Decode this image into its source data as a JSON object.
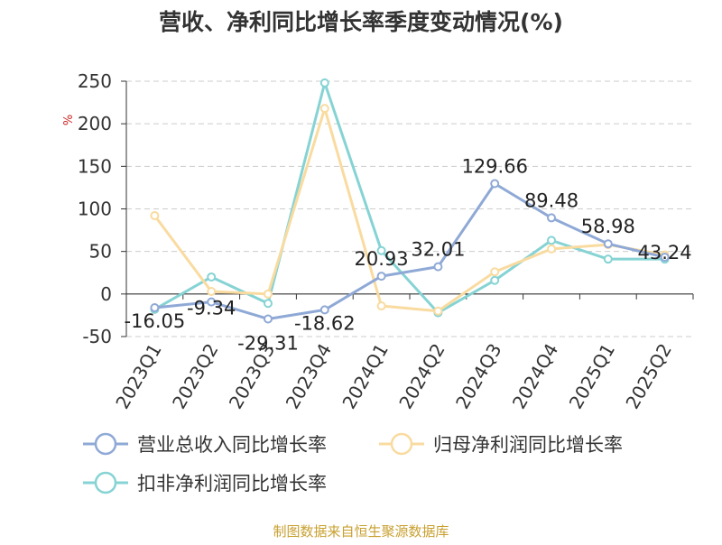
{
  "chart_data": {
    "type": "line",
    "title": "营收、净利同比增长率季度变动情况(%)",
    "ylabel": "%",
    "categories": [
      "2023Q1",
      "2023Q2",
      "2023Q3",
      "2023Q4",
      "2024Q1",
      "2024Q2",
      "2024Q3",
      "2024Q4",
      "2025Q1",
      "2025Q2"
    ],
    "ylim": [
      -50,
      250
    ],
    "yticks": [
      -50,
      0,
      50,
      100,
      150,
      200,
      250
    ],
    "grid": true,
    "legend_position": "bottom",
    "series": [
      {
        "name": "营业总收入同比增长率",
        "color": "#8fa9d6",
        "values": [
          -16.05,
          -9.34,
          -29.31,
          -18.62,
          20.93,
          32.01,
          129.66,
          89.48,
          58.98,
          43.24
        ],
        "labels": [
          "-16.05",
          "-9.34",
          "-29.31",
          "-18.62",
          "20.93",
          "32.01",
          "129.66",
          "89.48",
          "58.98",
          "43.24"
        ]
      },
      {
        "name": "归母净利润同比增长率",
        "color": "#f9dba0",
        "values": [
          92,
          3,
          0,
          218,
          -14,
          -20,
          26,
          53,
          58,
          46
        ]
      },
      {
        "name": "扣非净利润同比增长率",
        "color": "#86d3d4",
        "values": [
          -18,
          20,
          -11,
          248,
          51,
          -22,
          16,
          63,
          41,
          41
        ]
      }
    ]
  },
  "footer": {
    "source": "制图数据来自恒生聚源数据库"
  }
}
